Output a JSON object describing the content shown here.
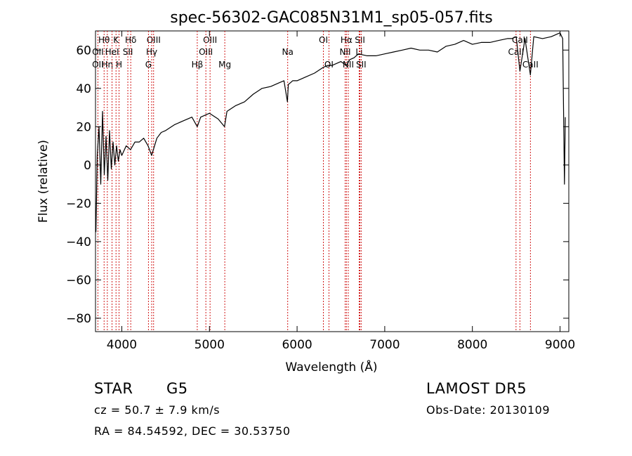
{
  "chart_data": {
    "type": "line",
    "title": "spec-56302-GAC085N31M1_sp05-057.fits",
    "xlabel": "Wavelength (Å)",
    "ylabel": "Flux (relative)",
    "xlim": [
      3700,
      9100
    ],
    "ylim": [
      -87,
      70
    ],
    "xticks": [
      4000,
      5000,
      6000,
      7000,
      8000,
      9000
    ],
    "yticks": [
      -80,
      -60,
      -40,
      -20,
      0,
      20,
      40,
      60
    ],
    "line_color": "#000000",
    "marker_color": "#cc0000",
    "series": [
      {
        "x": [
          3705,
          3720,
          3740,
          3760,
          3780,
          3800,
          3820,
          3840,
          3860,
          3880,
          3900,
          3920,
          3940,
          3960,
          3980,
          4000,
          4050,
          4100,
          4150,
          4200,
          4250,
          4300,
          4340,
          4400,
          4450,
          4500,
          4600,
          4700,
          4800,
          4861,
          4900,
          5000,
          5100,
          5172,
          5200,
          5300,
          5400,
          5500,
          5600,
          5700,
          5800,
          5850,
          5890,
          5900,
          5950,
          6000,
          6100,
          6200,
          6300,
          6350,
          6400,
          6500,
          6563,
          6600,
          6650,
          6700,
          6800,
          6900,
          7000,
          7100,
          7200,
          7300,
          7400,
          7500,
          7600,
          7700,
          7800,
          7900,
          8000,
          8100,
          8200,
          8300,
          8400,
          8450,
          8500,
          8542,
          8600,
          8662,
          8700,
          8800,
          8900,
          9000,
          9030,
          9050,
          9060
        ],
        "y": [
          -35,
          5,
          20,
          -10,
          28,
          -5,
          15,
          -8,
          18,
          -2,
          12,
          0,
          10,
          2,
          8,
          5,
          10,
          8,
          12,
          12,
          14,
          10,
          5,
          14,
          17,
          18,
          21,
          23,
          25,
          20,
          25,
          27,
          24,
          20,
          28,
          31,
          33,
          37,
          40,
          41,
          43,
          44,
          33,
          42,
          44,
          44,
          46,
          48,
          51,
          52,
          52,
          54,
          52,
          55,
          56,
          58,
          57,
          57,
          58,
          59,
          60,
          61,
          60,
          60,
          59,
          62,
          63,
          65,
          63,
          64,
          64,
          65,
          66,
          66,
          67,
          49,
          66,
          47,
          67,
          66,
          67,
          69,
          66,
          -10,
          25
        ]
      }
    ],
    "line_markers": [
      {
        "label": "Hθ",
        "x": 3798,
        "row": 1
      },
      {
        "label": "Hη",
        "x": 3835,
        "row": 3
      },
      {
        "label": "OII",
        "x": 3727,
        "row": 2
      },
      {
        "label": "OII",
        "x": 3727,
        "row": 3
      },
      {
        "label": "K",
        "x": 3934,
        "row": 1
      },
      {
        "label": "HeI",
        "x": 3889,
        "row": 2
      },
      {
        "label": "H",
        "x": 3969,
        "row": 3
      },
      {
        "label": "Hδ",
        "x": 4102,
        "row": 1
      },
      {
        "label": "SII",
        "x": 4069,
        "row": 2
      },
      {
        "label": "OIII",
        "x": 4363,
        "row": 1
      },
      {
        "label": "Hγ",
        "x": 4341,
        "row": 2
      },
      {
        "label": "G",
        "x": 4304,
        "row": 3
      },
      {
        "label": "OIII",
        "x": 5007,
        "row": 1
      },
      {
        "label": "OIII",
        "x": 4959,
        "row": 2
      },
      {
        "label": "Hβ",
        "x": 4861,
        "row": 3
      },
      {
        "label": "Mg",
        "x": 5175,
        "row": 3
      },
      {
        "label": "Na",
        "x": 5893,
        "row": 2
      },
      {
        "label": "OI",
        "x": 6300,
        "row": 1
      },
      {
        "label": "OI",
        "x": 6363,
        "row": 3
      },
      {
        "label": "Hα",
        "x": 6563,
        "row": 1
      },
      {
        "label": "SII",
        "x": 6717,
        "row": 1
      },
      {
        "label": "NII",
        "x": 6548,
        "row": 2
      },
      {
        "label": "Li",
        "x": 6708,
        "row": 2
      },
      {
        "label": "NII",
        "x": 6584,
        "row": 3
      },
      {
        "label": "SII",
        "x": 6731,
        "row": 3
      },
      {
        "label": "CaII",
        "x": 8542,
        "row": 1
      },
      {
        "label": "CaII",
        "x": 8498,
        "row": 2
      },
      {
        "label": "CaII",
        "x": 8662,
        "row": 3
      }
    ]
  },
  "info": {
    "object_class": "STAR",
    "subclass": "G5",
    "survey": "LAMOST  DR5",
    "velocity": "cz = 50.7 ± 7.9 km/s",
    "obs_date": "Obs-Date: 20130109",
    "coords": "RA =  84.54592, DEC =  30.53750"
  }
}
